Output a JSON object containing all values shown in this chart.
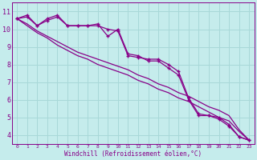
{
  "xlabel": "Windchill (Refroidissement éolien,°C)",
  "bg_color": "#c5ecec",
  "grid_color": "#a8d8d8",
  "line_color": "#880088",
  "x_values": [
    0,
    1,
    2,
    3,
    4,
    5,
    6,
    7,
    8,
    9,
    10,
    11,
    12,
    13,
    14,
    15,
    16,
    17,
    18,
    19,
    20,
    21,
    22,
    23
  ],
  "line_zigzag1": [
    10.6,
    10.8,
    10.2,
    10.6,
    10.8,
    10.2,
    10.2,
    10.2,
    10.3,
    9.6,
    10.0,
    8.6,
    8.5,
    8.2,
    8.2,
    7.8,
    7.4,
    6.0,
    5.1,
    5.1,
    4.9,
    4.5,
    3.9,
    3.7
  ],
  "line_zigzag2": [
    10.6,
    10.7,
    10.2,
    10.5,
    10.7,
    10.2,
    10.2,
    10.2,
    10.2,
    10.0,
    9.9,
    8.5,
    8.4,
    8.3,
    8.3,
    8.0,
    7.6,
    6.1,
    5.2,
    5.1,
    5.0,
    4.6,
    3.9,
    3.7
  ],
  "line_straight1": [
    10.6,
    10.3,
    9.9,
    9.6,
    9.3,
    9.0,
    8.7,
    8.5,
    8.3,
    8.1,
    7.9,
    7.7,
    7.4,
    7.2,
    6.9,
    6.7,
    6.4,
    6.2,
    5.9,
    5.6,
    5.4,
    5.1,
    4.3,
    3.7
  ],
  "line_straight2": [
    10.6,
    10.2,
    9.8,
    9.5,
    9.1,
    8.8,
    8.5,
    8.3,
    8.0,
    7.8,
    7.6,
    7.4,
    7.1,
    6.9,
    6.6,
    6.4,
    6.1,
    5.9,
    5.6,
    5.3,
    5.0,
    4.8,
    4.2,
    3.7
  ],
  "ylim": [
    3.5,
    11.5
  ],
  "yticks": [
    4,
    5,
    6,
    7,
    8,
    9,
    10,
    11
  ],
  "xlim": [
    -0.5,
    23.5
  ],
  "xticks": [
    0,
    1,
    2,
    3,
    4,
    5,
    6,
    7,
    8,
    9,
    10,
    11,
    12,
    13,
    14,
    15,
    16,
    17,
    18,
    19,
    20,
    21,
    22,
    23
  ],
  "linewidth": 0.9,
  "markersize": 3.5,
  "marker": "+"
}
